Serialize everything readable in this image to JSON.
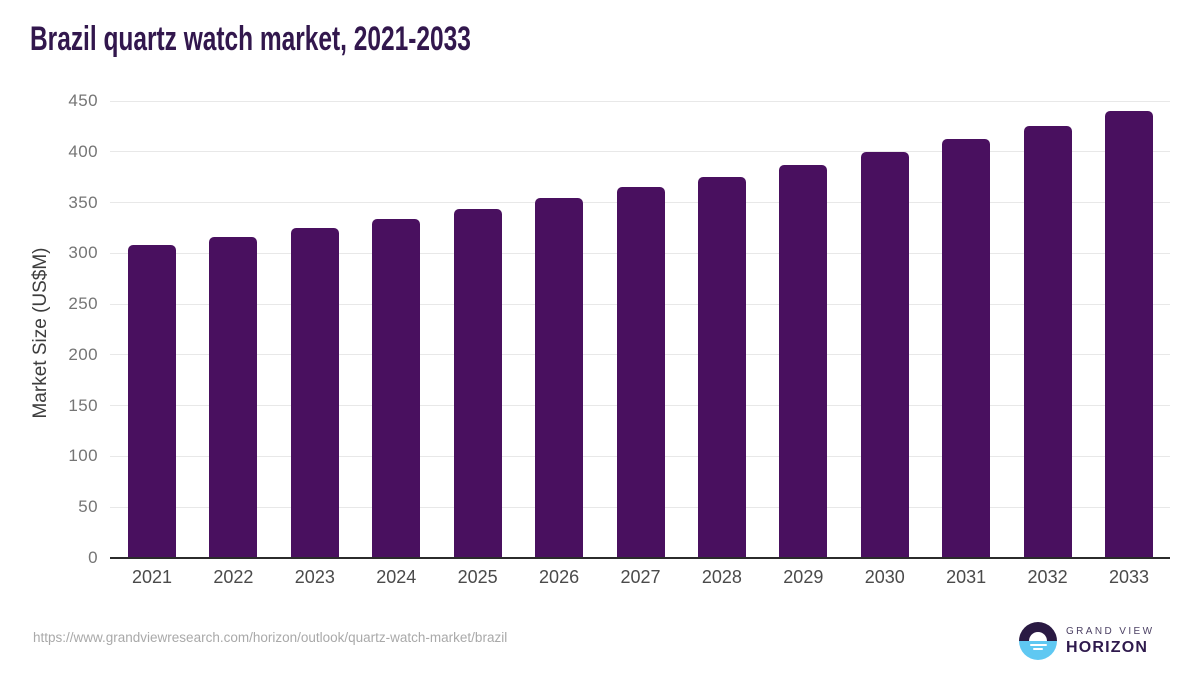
{
  "page": {
    "source_url": "https://www.grandviewresearch.com/horizon/outlook/quartz-watch-market/brazil"
  },
  "logo": {
    "brand_line1": "GRAND VIEW",
    "brand_line2": "HORIZON",
    "icon": "horizon-sunset-icon",
    "colors": {
      "circle_top": "#2a1a43",
      "circle_bottom": "#5fc8f2",
      "sun": "#ffffff",
      "text_line1": "#4c4164",
      "text_line2": "#2f1a4d"
    }
  },
  "chart_data": {
    "type": "bar",
    "title": "Brazil quartz watch market, 2021-2033",
    "xlabel": "",
    "ylabel": "Market Size (US$M)",
    "categories": [
      "2021",
      "2022",
      "2023",
      "2024",
      "2025",
      "2026",
      "2027",
      "2028",
      "2029",
      "2030",
      "2031",
      "2032",
      "2033"
    ],
    "values": [
      308,
      316,
      325,
      334,
      344,
      354,
      365,
      375,
      387,
      400,
      413,
      425,
      440
    ],
    "yticks": [
      0,
      50,
      100,
      150,
      200,
      250,
      300,
      350,
      400,
      450
    ],
    "ylim": [
      0,
      450
    ],
    "grid": true,
    "legend": "none",
    "colors": {
      "bar": "#49105f",
      "title": "#32174d",
      "y_tick_label": "#757575",
      "x_tick_label": "#4a4a4a",
      "axis_label": "#3d3d3d",
      "gridline": "#e8e8e8",
      "axis_line": "#2b2b2b",
      "source_url": "#a9a9a9"
    }
  }
}
